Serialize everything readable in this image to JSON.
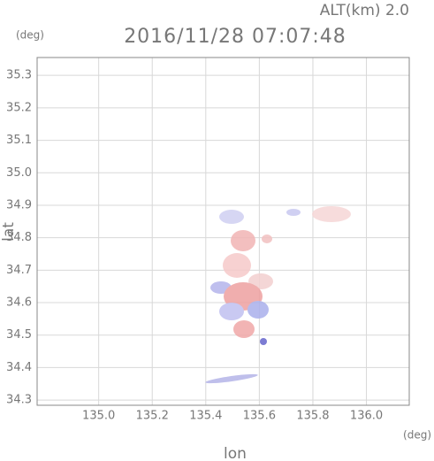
{
  "chart_data": {
    "type": "map",
    "title": "2016/11/28 07:07:48",
    "subtitle": "ALT(km) 2.0",
    "y_unit": "(deg)",
    "x_unit": "(deg)",
    "x_label": "lon",
    "y_label": "lat",
    "xlim": [
      134.77,
      136.16
    ],
    "ylim": [
      34.284,
      35.355
    ],
    "xticks": [
      {
        "value": 135,
        "label": "135.0"
      },
      135.2,
      135.4,
      135.6,
      135.8,
      {
        "value": 136,
        "label": "136.0"
      }
    ],
    "yticks": [
      34.3,
      34.4,
      34.5,
      34.6,
      34.7,
      34.8,
      34.9,
      {
        "value": 35,
        "label": "35.0"
      },
      35.1,
      35.2,
      35.3
    ],
    "grid": true
  }
}
